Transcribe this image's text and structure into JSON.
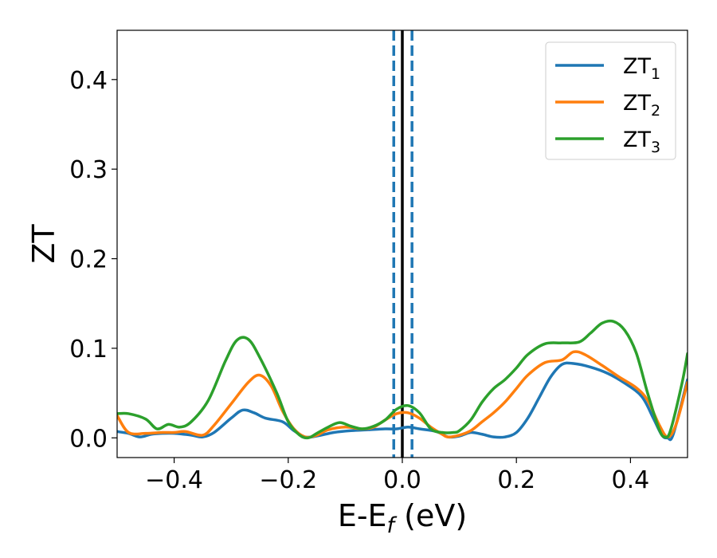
{
  "chart_data": {
    "type": "line",
    "xlabel": "E-E",
    "xlabel_sub": "f",
    "xlabel_unit": " (eV)",
    "ylabel": "ZT",
    "xlim": [
      -0.5,
      0.5
    ],
    "ylim": [
      -0.022,
      0.455
    ],
    "xticks": [
      -0.4,
      -0.2,
      0.0,
      0.2,
      0.4
    ],
    "xtick_labels": [
      "−0.4",
      "−0.2",
      "0.0",
      "0.2",
      "0.4"
    ],
    "yticks": [
      0.0,
      0.1,
      0.2,
      0.3,
      0.4
    ],
    "ytick_labels": [
      "0.0",
      "0.1",
      "0.2",
      "0.3",
      "0.4"
    ],
    "grid": false,
    "legend_position": "top-right",
    "vertical_lines": [
      {
        "x": 0.0,
        "style": "solid",
        "color": "#000000"
      },
      {
        "x": -0.015,
        "style": "dashed",
        "color": "#1f77b4"
      },
      {
        "x": 0.017,
        "style": "dashed",
        "color": "#1f77b4"
      }
    ],
    "series": [
      {
        "name": "ZT",
        "sub": "1",
        "color": "#1f77b4",
        "points": [
          [
            -0.5,
            0.007
          ],
          [
            -0.48,
            0.005
          ],
          [
            -0.46,
            0.001
          ],
          [
            -0.44,
            0.004
          ],
          [
            -0.42,
            0.005
          ],
          [
            -0.4,
            0.005
          ],
          [
            -0.37,
            0.003
          ],
          [
            -0.35,
            0.001
          ],
          [
            -0.33,
            0.006
          ],
          [
            -0.3,
            0.022
          ],
          [
            -0.28,
            0.031
          ],
          [
            -0.26,
            0.028
          ],
          [
            -0.24,
            0.022
          ],
          [
            -0.21,
            0.018
          ],
          [
            -0.19,
            0.008
          ],
          [
            -0.17,
            0.001
          ],
          [
            -0.15,
            0.002
          ],
          [
            -0.12,
            0.006
          ],
          [
            -0.09,
            0.008
          ],
          [
            -0.06,
            0.009
          ],
          [
            -0.03,
            0.01
          ],
          [
            -0.01,
            0.01
          ],
          [
            0.01,
            0.012
          ],
          [
            0.03,
            0.01
          ],
          [
            0.06,
            0.007
          ],
          [
            0.08,
            0.001
          ],
          [
            0.1,
            0.002
          ],
          [
            0.12,
            0.006
          ],
          [
            0.14,
            0.004
          ],
          [
            0.16,
            0.001
          ],
          [
            0.18,
            0.001
          ],
          [
            0.2,
            0.006
          ],
          [
            0.22,
            0.022
          ],
          [
            0.24,
            0.045
          ],
          [
            0.26,
            0.068
          ],
          [
            0.28,
            0.082
          ],
          [
            0.3,
            0.083
          ],
          [
            0.33,
            0.079
          ],
          [
            0.36,
            0.072
          ],
          [
            0.39,
            0.061
          ],
          [
            0.42,
            0.046
          ],
          [
            0.44,
            0.022
          ],
          [
            0.455,
            0.003
          ],
          [
            0.465,
            0.0
          ],
          [
            0.475,
            0.004
          ],
          [
            0.5,
            0.065
          ]
        ]
      },
      {
        "name": "ZT",
        "sub": "2",
        "color": "#ff7f0e",
        "points": [
          [
            -0.5,
            0.025
          ],
          [
            -0.48,
            0.006
          ],
          [
            -0.45,
            0.005
          ],
          [
            -0.42,
            0.006
          ],
          [
            -0.4,
            0.006
          ],
          [
            -0.38,
            0.007
          ],
          [
            -0.35,
            0.003
          ],
          [
            -0.33,
            0.014
          ],
          [
            -0.3,
            0.038
          ],
          [
            -0.27,
            0.062
          ],
          [
            -0.25,
            0.07
          ],
          [
            -0.23,
            0.058
          ],
          [
            -0.21,
            0.03
          ],
          [
            -0.19,
            0.01
          ],
          [
            -0.17,
            0.001
          ],
          [
            -0.15,
            0.003
          ],
          [
            -0.13,
            0.009
          ],
          [
            -0.1,
            0.012
          ],
          [
            -0.07,
            0.01
          ],
          [
            -0.05,
            0.012
          ],
          [
            -0.03,
            0.02
          ],
          [
            -0.01,
            0.027
          ],
          [
            0.01,
            0.028
          ],
          [
            0.03,
            0.022
          ],
          [
            0.05,
            0.012
          ],
          [
            0.07,
            0.004
          ],
          [
            0.08,
            0.001
          ],
          [
            0.1,
            0.003
          ],
          [
            0.12,
            0.008
          ],
          [
            0.14,
            0.018
          ],
          [
            0.16,
            0.028
          ],
          [
            0.18,
            0.04
          ],
          [
            0.2,
            0.055
          ],
          [
            0.22,
            0.07
          ],
          [
            0.25,
            0.084
          ],
          [
            0.28,
            0.087
          ],
          [
            0.3,
            0.096
          ],
          [
            0.32,
            0.093
          ],
          [
            0.35,
            0.081
          ],
          [
            0.38,
            0.068
          ],
          [
            0.41,
            0.056
          ],
          [
            0.43,
            0.042
          ],
          [
            0.45,
            0.015
          ],
          [
            0.465,
            0.001
          ],
          [
            0.48,
            0.015
          ],
          [
            0.5,
            0.062
          ]
        ]
      },
      {
        "name": "ZT",
        "sub": "3",
        "color": "#2ca02c",
        "points": [
          [
            -0.5,
            0.027
          ],
          [
            -0.48,
            0.027
          ],
          [
            -0.45,
            0.021
          ],
          [
            -0.43,
            0.01
          ],
          [
            -0.41,
            0.015
          ],
          [
            -0.39,
            0.012
          ],
          [
            -0.37,
            0.018
          ],
          [
            -0.34,
            0.042
          ],
          [
            -0.31,
            0.086
          ],
          [
            -0.29,
            0.109
          ],
          [
            -0.27,
            0.11
          ],
          [
            -0.25,
            0.09
          ],
          [
            -0.22,
            0.05
          ],
          [
            -0.2,
            0.018
          ],
          [
            -0.18,
            0.003
          ],
          [
            -0.165,
            0.0
          ],
          [
            -0.15,
            0.005
          ],
          [
            -0.13,
            0.012
          ],
          [
            -0.11,
            0.017
          ],
          [
            -0.09,
            0.013
          ],
          [
            -0.07,
            0.01
          ],
          [
            -0.05,
            0.013
          ],
          [
            -0.03,
            0.02
          ],
          [
            -0.01,
            0.032
          ],
          [
            0.01,
            0.036
          ],
          [
            0.03,
            0.028
          ],
          [
            0.05,
            0.01
          ],
          [
            0.07,
            0.006
          ],
          [
            0.09,
            0.006
          ],
          [
            0.1,
            0.008
          ],
          [
            0.12,
            0.02
          ],
          [
            0.14,
            0.04
          ],
          [
            0.16,
            0.055
          ],
          [
            0.18,
            0.065
          ],
          [
            0.2,
            0.078
          ],
          [
            0.22,
            0.093
          ],
          [
            0.25,
            0.105
          ],
          [
            0.28,
            0.106
          ],
          [
            0.31,
            0.107
          ],
          [
            0.33,
            0.117
          ],
          [
            0.35,
            0.128
          ],
          [
            0.37,
            0.13
          ],
          [
            0.39,
            0.12
          ],
          [
            0.41,
            0.095
          ],
          [
            0.43,
            0.05
          ],
          [
            0.45,
            0.01
          ],
          [
            0.46,
            0.001
          ],
          [
            0.47,
            0.008
          ],
          [
            0.49,
            0.06
          ],
          [
            0.5,
            0.094
          ]
        ]
      }
    ]
  }
}
